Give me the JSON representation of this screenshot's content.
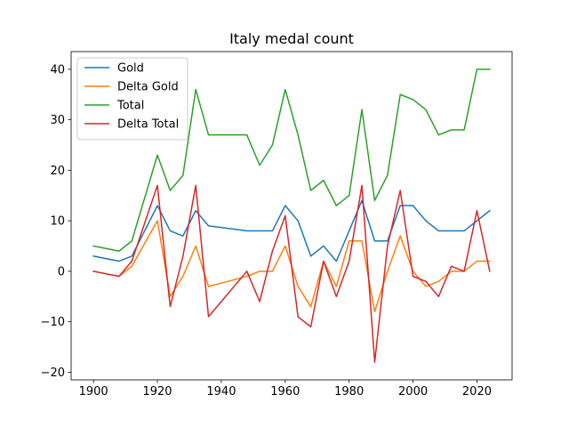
{
  "chart_data": {
    "type": "line",
    "title": "Italy medal count",
    "xlabel": "",
    "ylabel": "",
    "xlim": [
      1893,
      2031
    ],
    "ylim": [
      -21.5,
      43.5
    ],
    "xticks": [
      1900,
      1920,
      1940,
      1960,
      1980,
      2000,
      2020
    ],
    "yticks": [
      -20,
      -10,
      0,
      10,
      20,
      30,
      40
    ],
    "grid": false,
    "legend_position": "top-left",
    "x": [
      1900,
      1908,
      1912,
      1920,
      1924,
      1928,
      1932,
      1936,
      1948,
      1952,
      1956,
      1960,
      1964,
      1968,
      1972,
      1976,
      1980,
      1984,
      1988,
      1992,
      1996,
      2000,
      2004,
      2008,
      2012,
      2016,
      2020,
      2024
    ],
    "series": [
      {
        "name": "Gold",
        "color": "#1f77b4",
        "values": [
          3,
          2,
          3,
          13,
          8,
          7,
          12,
          9,
          8,
          8,
          8,
          13,
          10,
          3,
          5,
          2,
          8,
          14,
          6,
          6,
          13,
          13,
          10,
          8,
          8,
          8,
          10,
          12
        ]
      },
      {
        "name": "Delta Gold",
        "color": "#ff7f0e",
        "values": [
          0,
          -1,
          1,
          10,
          -5,
          -1,
          5,
          -3,
          -1,
          0,
          0,
          5,
          -3,
          -7,
          2,
          -3,
          6,
          6,
          -8,
          0,
          7,
          0,
          -3,
          -2,
          0,
          0,
          2,
          2
        ]
      },
      {
        "name": "Total",
        "color": "#2ca02c",
        "values": [
          5,
          4,
          6,
          23,
          16,
          19,
          36,
          27,
          27,
          21,
          25,
          36,
          27,
          16,
          18,
          13,
          15,
          32,
          14,
          19,
          35,
          34,
          32,
          27,
          28,
          28,
          40,
          40
        ]
      },
      {
        "name": "Delta Total",
        "color": "#d62728",
        "values": [
          0,
          -1,
          2,
          17,
          -7,
          3,
          17,
          -9,
          0,
          -6,
          4,
          11,
          -9,
          -11,
          2,
          -5,
          2,
          17,
          -18,
          5,
          16,
          -1,
          -2,
          -5,
          1,
          0,
          12,
          0
        ]
      }
    ]
  }
}
